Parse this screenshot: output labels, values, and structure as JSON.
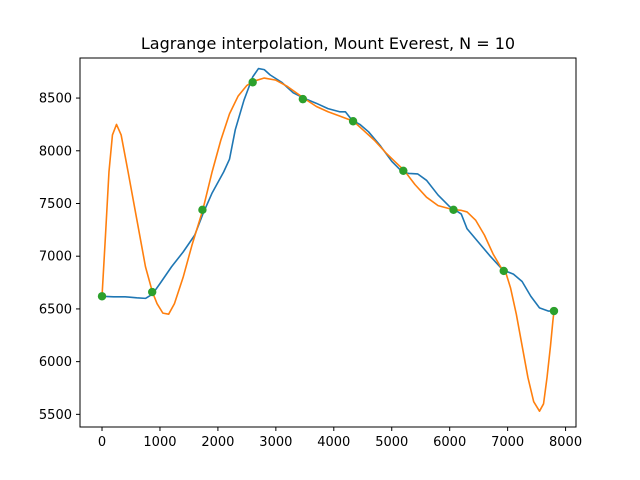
{
  "chart_data": {
    "type": "line",
    "title": "Lagrange interpolation, Mount Everest, N = 10",
    "xlabel": "",
    "ylabel": "",
    "xlim": [
      -380,
      8180
    ],
    "ylim": [
      5380,
      8880
    ],
    "xticks": [
      0,
      1000,
      2000,
      3000,
      4000,
      5000,
      6000,
      7000,
      8000
    ],
    "yticks": [
      5500,
      6000,
      6500,
      7000,
      7500,
      8000,
      8500
    ],
    "grid": false,
    "legend": "none",
    "series": [
      {
        "color": "#1f77b4",
        "x": [
          0,
          200,
          400,
          600,
          750,
          870,
          1000,
          1200,
          1400,
          1600,
          1740,
          1900,
          2100,
          2200,
          2300,
          2450,
          2600,
          2700,
          2800,
          2900,
          3100,
          3300,
          3480,
          3700,
          3900,
          4100,
          4200,
          4300,
          4350,
          4450,
          4600,
          4800,
          5000,
          5200,
          5300,
          5450,
          5600,
          5800,
          6000,
          6090,
          6200,
          6300,
          6500,
          6700,
          6900,
          6960,
          7100,
          7250,
          7400,
          7550,
          7700,
          7800
        ],
        "y": [
          6620,
          6615,
          6615,
          6605,
          6600,
          6640,
          6740,
          6900,
          7040,
          7200,
          7400,
          7600,
          7800,
          7920,
          8200,
          8480,
          8700,
          8780,
          8770,
          8720,
          8650,
          8550,
          8500,
          8450,
          8400,
          8370,
          8370,
          8300,
          8280,
          8250,
          8180,
          8050,
          7900,
          7790,
          7785,
          7780,
          7720,
          7580,
          7470,
          7440,
          7400,
          7260,
          7130,
          7000,
          6880,
          6860,
          6830,
          6760,
          6620,
          6510,
          6480,
          6480
        ]
      },
      {
        "color": "#ff7f0e",
        "x": [
          0,
          60,
          120,
          180,
          250,
          330,
          450,
          600,
          750,
          870,
          950,
          1050,
          1150,
          1250,
          1400,
          1550,
          1740,
          1900,
          2050,
          2200,
          2350,
          2500,
          2620,
          2800,
          3000,
          3200,
          3480,
          3700,
          3900,
          4100,
          4340,
          4500,
          4700,
          4900,
          5220,
          5400,
          5600,
          5800,
          6000,
          6090,
          6200,
          6300,
          6450,
          6600,
          6750,
          6900,
          6960,
          7050,
          7150,
          7250,
          7350,
          7450,
          7550,
          7620,
          7680,
          7740,
          7780,
          7800
        ],
        "y": [
          6620,
          7200,
          7800,
          8150,
          8250,
          8150,
          7800,
          7350,
          6900,
          6660,
          6550,
          6460,
          6450,
          6550,
          6800,
          7100,
          7440,
          7800,
          8100,
          8350,
          8520,
          8620,
          8660,
          8690,
          8670,
          8610,
          8500,
          8420,
          8370,
          8330,
          8280,
          8200,
          8100,
          7980,
          7810,
          7680,
          7560,
          7480,
          7450,
          7440,
          7435,
          7420,
          7340,
          7200,
          7020,
          6880,
          6860,
          6700,
          6450,
          6150,
          5850,
          5620,
          5530,
          5600,
          5850,
          6150,
          6380,
          6480
        ]
      },
      {
        "type": "scatter",
        "color": "#2ca02c",
        "x": [
          0,
          866,
          1733,
          2600,
          3466,
          4333,
          5200,
          6066,
          6933,
          7800
        ],
        "y": [
          6620,
          6660,
          7440,
          8650,
          8490,
          8280,
          7810,
          7440,
          6860,
          6480
        ]
      }
    ]
  }
}
